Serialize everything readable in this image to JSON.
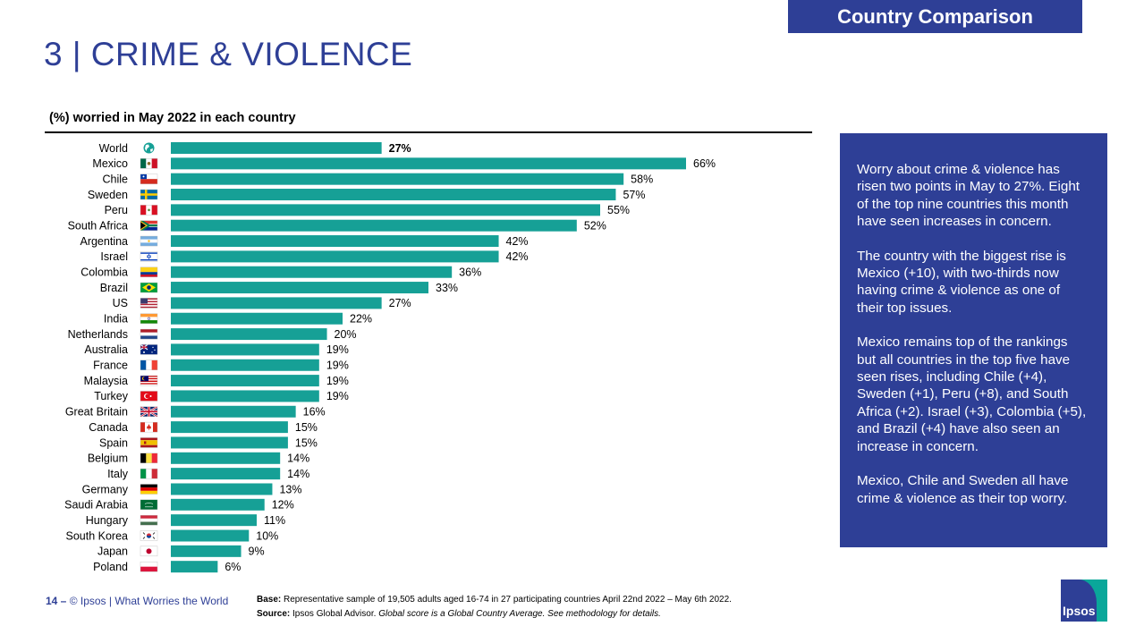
{
  "header": {
    "tag": "Country Comparison",
    "title": "3 | CRIME & VIOLENCE"
  },
  "chart_data": {
    "type": "bar",
    "orientation": "horizontal",
    "title": "(%) worried in May 2022 in each country",
    "categories": [
      "World",
      "Mexico",
      "Chile",
      "Sweden",
      "Peru",
      "South Africa",
      "Argentina",
      "Israel",
      "Colombia",
      "Brazil",
      "US",
      "India",
      "Netherlands",
      "Australia",
      "France",
      "Malaysia",
      "Turkey",
      "Great Britain",
      "Canada",
      "Spain",
      "Belgium",
      "Italy",
      "Germany",
      "Saudi Arabia",
      "Hungary",
      "South Korea",
      "Japan",
      "Poland"
    ],
    "values": [
      27,
      66,
      58,
      57,
      55,
      52,
      42,
      42,
      36,
      33,
      27,
      22,
      20,
      19,
      19,
      19,
      19,
      16,
      15,
      15,
      14,
      14,
      13,
      12,
      11,
      10,
      9,
      6
    ],
    "labels": [
      "27%",
      "66%",
      "58%",
      "57%",
      "55%",
      "52%",
      "42%",
      "42%",
      "36%",
      "33%",
      "27%",
      "22%",
      "20%",
      "19%",
      "19%",
      "19%",
      "19%",
      "16%",
      "15%",
      "15%",
      "14%",
      "14%",
      "13%",
      "12%",
      "11%",
      "10%",
      "9%",
      "6%"
    ],
    "bar_color": "#16a096",
    "xlim": [
      0,
      66
    ],
    "grid": false,
    "legend": "none"
  },
  "flags": [
    "globe-icon",
    "flag-mexico-icon",
    "flag-chile-icon",
    "flag-sweden-icon",
    "flag-peru-icon",
    "flag-south-africa-icon",
    "flag-argentina-icon",
    "flag-israel-icon",
    "flag-colombia-icon",
    "flag-brazil-icon",
    "flag-us-icon",
    "flag-india-icon",
    "flag-netherlands-icon",
    "flag-australia-icon",
    "flag-france-icon",
    "flag-malaysia-icon",
    "flag-turkey-icon",
    "flag-great-britain-icon",
    "flag-canada-icon",
    "flag-spain-icon",
    "flag-belgium-icon",
    "flag-italy-icon",
    "flag-germany-icon",
    "flag-saudi-arabia-icon",
    "flag-hungary-icon",
    "flag-south-korea-icon",
    "flag-japan-icon",
    "flag-poland-icon"
  ],
  "panel": {
    "p1": "Worry about crime & violence has risen two points in May to 27%. Eight of the top nine countries this month have seen increases in concern.",
    "p2": "The country with the biggest rise is Mexico (+10), with two-thirds now having crime & violence as one of their top issues.",
    "p3": "Mexico remains top of the rankings but all countries in the top five have seen rises, including Chile (+4), Sweden (+1), Peru (+8), and South Africa (+2). Israel (+3), Colombia (+5), and Brazil (+4) have also seen an increase in concern.",
    "p4": "Mexico, Chile and Sweden all have crime & violence as their top worry."
  },
  "footer": {
    "page": "14 –",
    "credit": "© Ipsos | What Worries the World",
    "base_label": "Base:",
    "base_text": " Representative sample of 19,505 adults aged 16-74 in 27 participating countries April 22nd 2022 – May 6th 2022.",
    "source_label": "Source:",
    "source_text": " Ipsos Global Advisor. ",
    "source_italic": "Global score is a Global Country Average. See methodology for details.",
    "logo": "Ipsos"
  },
  "colors": {
    "brand_blue": "#2e3f96",
    "bar_teal": "#16a096"
  }
}
